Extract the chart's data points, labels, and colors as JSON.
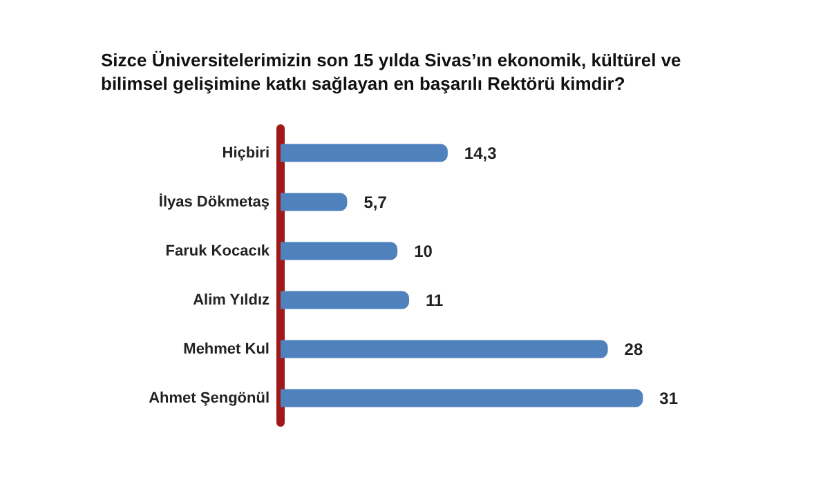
{
  "chart_data": {
    "type": "bar",
    "orientation": "horizontal",
    "title": "Sizce Üniversitelerimizin son 15 yılda Sivas’ın ekonomik, kültürel ve bilimsel gelişimine katkı sağlayan en başarılı Rektörü kimdir?",
    "categories": [
      "Hiçbiri",
      "İlyas Dökmetaş",
      "Faruk Kocacık",
      "Alim Yıldız",
      "Mehmet Kul",
      "Ahmet Şengönül"
    ],
    "values": [
      14.3,
      5.7,
      10,
      11,
      28,
      31
    ],
    "value_labels": [
      "14,3",
      "5,7",
      "10",
      "11",
      "28",
      "31"
    ],
    "color": "#4f81bd"
  }
}
